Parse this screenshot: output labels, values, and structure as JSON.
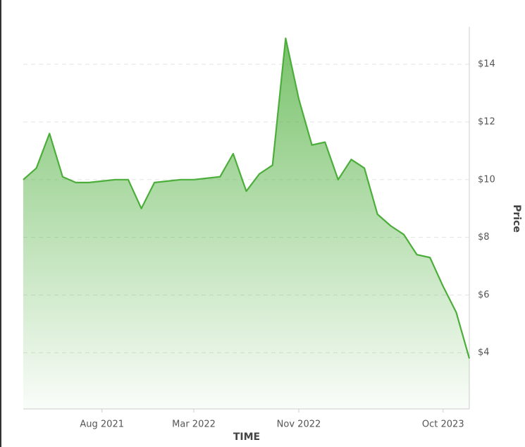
{
  "chart_data": {
    "type": "area",
    "x_label": "TIME",
    "y_label": "Price",
    "color": "#4cae3a",
    "grid": true,
    "x": [
      "2021-02",
      "2021-03",
      "2021-04",
      "2021-05",
      "2021-06",
      "2021-07",
      "2021-08",
      "2021-09",
      "2021-10",
      "2021-11",
      "2021-12",
      "2022-01",
      "2022-02",
      "2022-03",
      "2022-04",
      "2022-05",
      "2022-06",
      "2022-07",
      "2022-08",
      "2022-09",
      "2022-10",
      "2022-11",
      "2022-12",
      "2023-01",
      "2023-02",
      "2023-03",
      "2023-04",
      "2023-05",
      "2023-06",
      "2023-07",
      "2023-08",
      "2023-09",
      "2023-10",
      "2023-11",
      "2023-12"
    ],
    "values": [
      10.0,
      10.4,
      11.6,
      10.1,
      9.9,
      9.9,
      9.95,
      10.0,
      10.0,
      9.0,
      9.9,
      9.95,
      10.0,
      10.0,
      10.05,
      10.1,
      10.9,
      9.6,
      10.2,
      10.5,
      14.9,
      12.8,
      11.2,
      11.3,
      10.0,
      10.7,
      10.4,
      8.8,
      8.4,
      8.1,
      7.4,
      7.3,
      6.3,
      5.4,
      3.8
    ],
    "xlim": [
      "2021-02",
      "2023-12"
    ],
    "xticks": [
      {
        "value": "2021-08",
        "label": "Aug 2021"
      },
      {
        "value": "2022-03",
        "label": "Mar 2022"
      },
      {
        "value": "2022-11",
        "label": "Nov 2022"
      },
      {
        "value": "2023-10",
        "label": "Oct 2023"
      }
    ],
    "ylim": [
      2.05,
      15.3
    ],
    "yticks": [
      {
        "value": 4,
        "label": "$4"
      },
      {
        "value": 6,
        "label": "$6"
      },
      {
        "value": 8,
        "label": "$8"
      },
      {
        "value": 10,
        "label": "$10"
      },
      {
        "value": 12,
        "label": "$12"
      },
      {
        "value": 14,
        "label": "$14"
      }
    ]
  }
}
